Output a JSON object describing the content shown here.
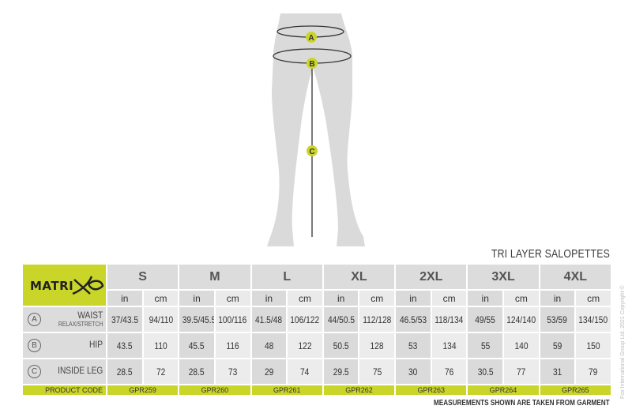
{
  "figure": {
    "markers": [
      "A",
      "B",
      "C"
    ]
  },
  "title": "TRI LAYER SALOPETTES",
  "logo": "MATRIX",
  "sizes": [
    "S",
    "M",
    "L",
    "XL",
    "2XL",
    "3XL",
    "4XL"
  ],
  "units": {
    "in": "in",
    "cm": "cm"
  },
  "rows": [
    {
      "marker": "A",
      "label": "WAIST",
      "sublabel": "RELAX/STRETCH",
      "values": [
        [
          "37/43.5",
          "94/110"
        ],
        [
          "39.5/45.5",
          "100/116"
        ],
        [
          "41.5/48",
          "106/122"
        ],
        [
          "44/50.5",
          "112/128"
        ],
        [
          "46.5/53",
          "118/134"
        ],
        [
          "49/55",
          "124/140"
        ],
        [
          "53/59",
          "134/150"
        ]
      ]
    },
    {
      "marker": "B",
      "label": "HIP",
      "values": [
        [
          "43.5",
          "110"
        ],
        [
          "45.5",
          "116"
        ],
        [
          "48",
          "122"
        ],
        [
          "50.5",
          "128"
        ],
        [
          "53",
          "134"
        ],
        [
          "55",
          "140"
        ],
        [
          "59",
          "150"
        ]
      ]
    },
    {
      "marker": "C",
      "label": "INSIDE LEG",
      "values": [
        [
          "28.5",
          "72"
        ],
        [
          "28.5",
          "73"
        ],
        [
          "29",
          "74"
        ],
        [
          "29.5",
          "75"
        ],
        [
          "30",
          "76"
        ],
        [
          "30.5",
          "77"
        ],
        [
          "31",
          "79"
        ]
      ]
    }
  ],
  "product_code_label": "PRODUCT CODE",
  "product_codes": [
    "GPR259",
    "GPR260",
    "GPR261",
    "GPR262",
    "GPR263",
    "GPR264",
    "GPR265"
  ],
  "footer": "MEASUREMENTS SHOWN ARE TAKEN FROM GARMENT",
  "copyright": "Fox International Group Ltd. 2021 Copyright ©",
  "colors": {
    "accent": "#c9d529",
    "silhouette": "#dadada"
  }
}
